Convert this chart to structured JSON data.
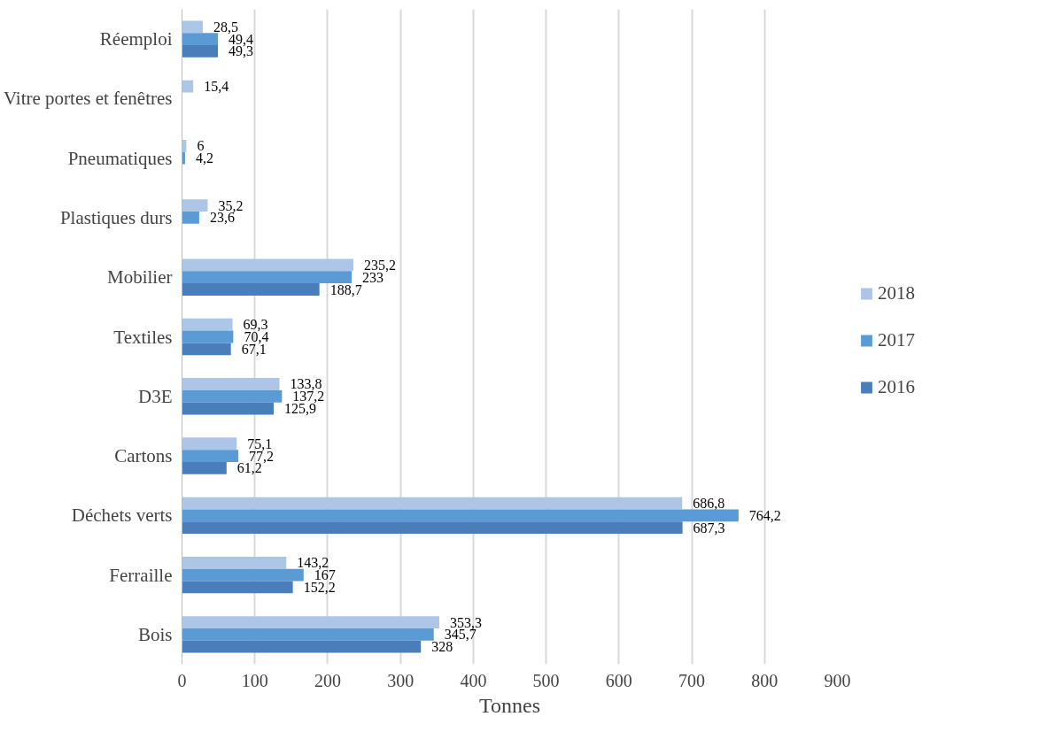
{
  "chart_data": {
    "type": "bar",
    "orientation": "horizontal",
    "xlabel": "Tonnes",
    "categories": [
      "Réemploi",
      "Vitre portes et fenêtres",
      "Pneumatiques",
      "Plastiques durs",
      "Mobilier",
      "Textiles",
      "D3E",
      "Cartons",
      "Déchets verts",
      "Ferraille",
      "Bois"
    ],
    "series": [
      {
        "name": "2018",
        "color": "#adc5e7",
        "values": [
          28.5,
          15.4,
          6,
          35.2,
          235.2,
          69.3,
          133.8,
          75.1,
          686.8,
          143.2,
          353.3
        ],
        "value_labels": [
          "28,5",
          "15,4",
          "6",
          "35,2",
          "235,2",
          "69,3",
          "133,8",
          "75,1",
          "686,8",
          "143,2",
          "353,3"
        ]
      },
      {
        "name": "2017",
        "color": "#5b9bd5",
        "values": [
          49.4,
          null,
          4.2,
          23.6,
          233,
          70.4,
          137.2,
          77.2,
          764.2,
          167,
          345.7
        ],
        "value_labels": [
          "49,4",
          null,
          "4,2",
          "23,6",
          "233",
          "70,4",
          "137,2",
          "77,2",
          "764,2",
          "167",
          "345,7"
        ]
      },
      {
        "name": "2016",
        "color": "#4a7ebb",
        "values": [
          49.3,
          null,
          null,
          null,
          188.7,
          67.1,
          125.9,
          61.2,
          687.3,
          152.2,
          328
        ],
        "value_labels": [
          "49,3",
          null,
          null,
          null,
          "188,7",
          "67,1",
          "125,9",
          "61,2",
          "687,3",
          "152,2",
          "328"
        ]
      }
    ],
    "xlim": [
      0,
      900
    ],
    "xticks": [
      0,
      100,
      200,
      300,
      400,
      500,
      600,
      700,
      800,
      900
    ],
    "grid": "x",
    "legend": "right"
  }
}
